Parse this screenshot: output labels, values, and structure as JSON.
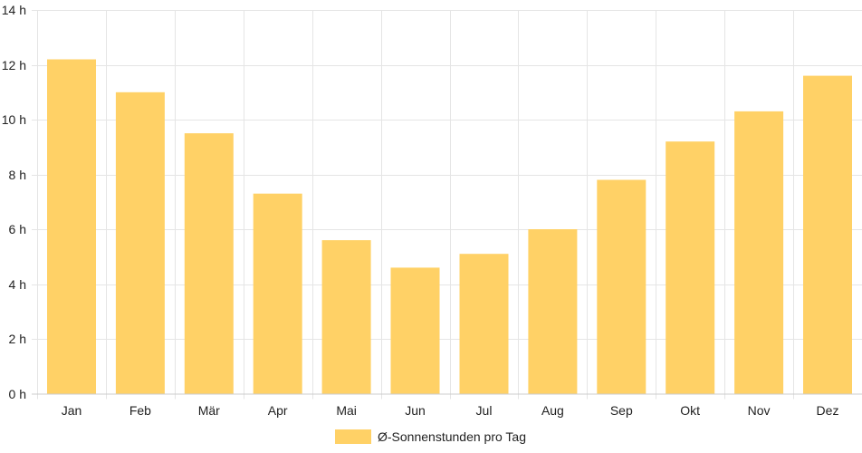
{
  "chart_data": {
    "type": "bar",
    "categories": [
      "Jan",
      "Feb",
      "Mär",
      "Apr",
      "Mai",
      "Jun",
      "Jul",
      "Aug",
      "Sep",
      "Okt",
      "Nov",
      "Dez"
    ],
    "series": [
      {
        "name": "Ø-Sonnenstunden pro Tag",
        "values": [
          12.2,
          11.0,
          9.5,
          7.3,
          5.6,
          4.6,
          5.1,
          6.0,
          7.8,
          9.2,
          10.3,
          11.6
        ],
        "color": "#ffd166"
      }
    ],
    "ylim": [
      0,
      14
    ],
    "yticks": [
      0,
      2,
      4,
      6,
      8,
      10,
      12,
      14
    ],
    "ytick_labels": [
      "0 h",
      "2 h",
      "4 h",
      "6 h",
      "8 h",
      "10 h",
      "12 h",
      "14 h"
    ],
    "title": "",
    "xlabel": "",
    "ylabel": "",
    "grid": true,
    "legend_position": "bottom"
  }
}
